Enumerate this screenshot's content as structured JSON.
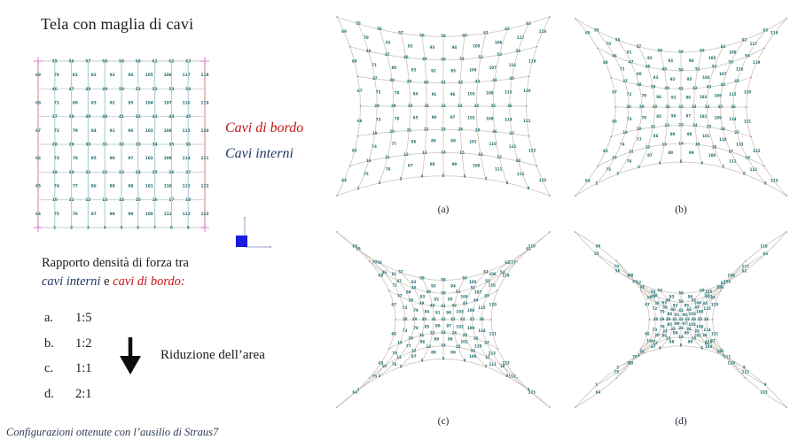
{
  "title": "Tela con maglia di cavi",
  "legend": {
    "bordo_label": "Cavi di bordo",
    "interni_label": "Cavi interni",
    "bordo_color": "#c41414",
    "interni_color": "#1f3864"
  },
  "force_ratio": {
    "line1": "Rapporto densità di forza tra",
    "interni": "cavi interni",
    "conj": " e ",
    "bordo": "cavi di bordo:"
  },
  "ratios": [
    {
      "key": "a.",
      "value": "1:5"
    },
    {
      "key": "b.",
      "value": "1:2"
    },
    {
      "key": "c.",
      "value": "1:1"
    },
    {
      "key": "d.",
      "value": "2:1"
    }
  ],
  "area_note": "Riduzione dell’area",
  "footer": "Configurazioni ottenute con l’ausilio di Straus7",
  "mesh": {
    "node_color": "#1a686d",
    "line_color": "#c9c0b6",
    "tick_color": "#b05a50",
    "grid": {
      "border_vertical_color": "#d98d86",
      "border_horizontal_color": "#c6cbc9",
      "interior_vertical_color": "#abced2",
      "interior_horizontal_color": "#c4cfd1",
      "corner_mark_color": "#cf62c9"
    },
    "node_rows": [
      {
        "type": "line",
        "nums": [
          55,
          56,
          57,
          58,
          59,
          60,
          61,
          62,
          63
        ]
      },
      {
        "type": "mid",
        "nums": [
          69,
          70,
          81,
          82,
          93,
          94,
          105,
          106,
          117,
          118
        ]
      },
      {
        "type": "line",
        "nums": [
          46,
          47,
          48,
          49,
          50,
          51,
          52,
          53,
          54
        ]
      },
      {
        "type": "mid",
        "nums": [
          68,
          71,
          80,
          83,
          92,
          95,
          104,
          107,
          116,
          119
        ]
      },
      {
        "type": "line",
        "nums": [
          37,
          38,
          39,
          40,
          41,
          42,
          43,
          44,
          45
        ]
      },
      {
        "type": "mid",
        "nums": [
          67,
          72,
          79,
          84,
          91,
          96,
          103,
          108,
          115,
          120
        ]
      },
      {
        "type": "line",
        "nums": [
          28,
          29,
          30,
          31,
          32,
          33,
          34,
          35,
          36
        ]
      },
      {
        "type": "mid",
        "nums": [
          66,
          73,
          78,
          85,
          90,
          97,
          102,
          109,
          114,
          121
        ]
      },
      {
        "type": "line",
        "nums": [
          19,
          20,
          21,
          22,
          23,
          24,
          25,
          26,
          27
        ]
      },
      {
        "type": "mid",
        "nums": [
          65,
          74,
          77,
          86,
          89,
          98,
          101,
          110,
          113,
          122
        ]
      },
      {
        "type": "line",
        "nums": [
          10,
          11,
          12,
          13,
          14,
          15,
          16,
          17,
          18
        ]
      },
      {
        "type": "mid",
        "nums": [
          64,
          75,
          76,
          87,
          88,
          99,
          100,
          111,
          112,
          123
        ]
      },
      {
        "type": "line",
        "nums": [
          1,
          2,
          3,
          4,
          5,
          6,
          7,
          8,
          9
        ]
      }
    ]
  },
  "diagrams": [
    {
      "label": "(a)",
      "pinch": 0.22
    },
    {
      "label": "(b)",
      "pinch": 0.38
    },
    {
      "label": "(c)",
      "pinch": 0.55
    },
    {
      "label": "(d)",
      "pinch": 0.7
    }
  ],
  "axes_icon": {
    "square_color": "#1a1ae0",
    "line_color": "#9aa4c8"
  }
}
